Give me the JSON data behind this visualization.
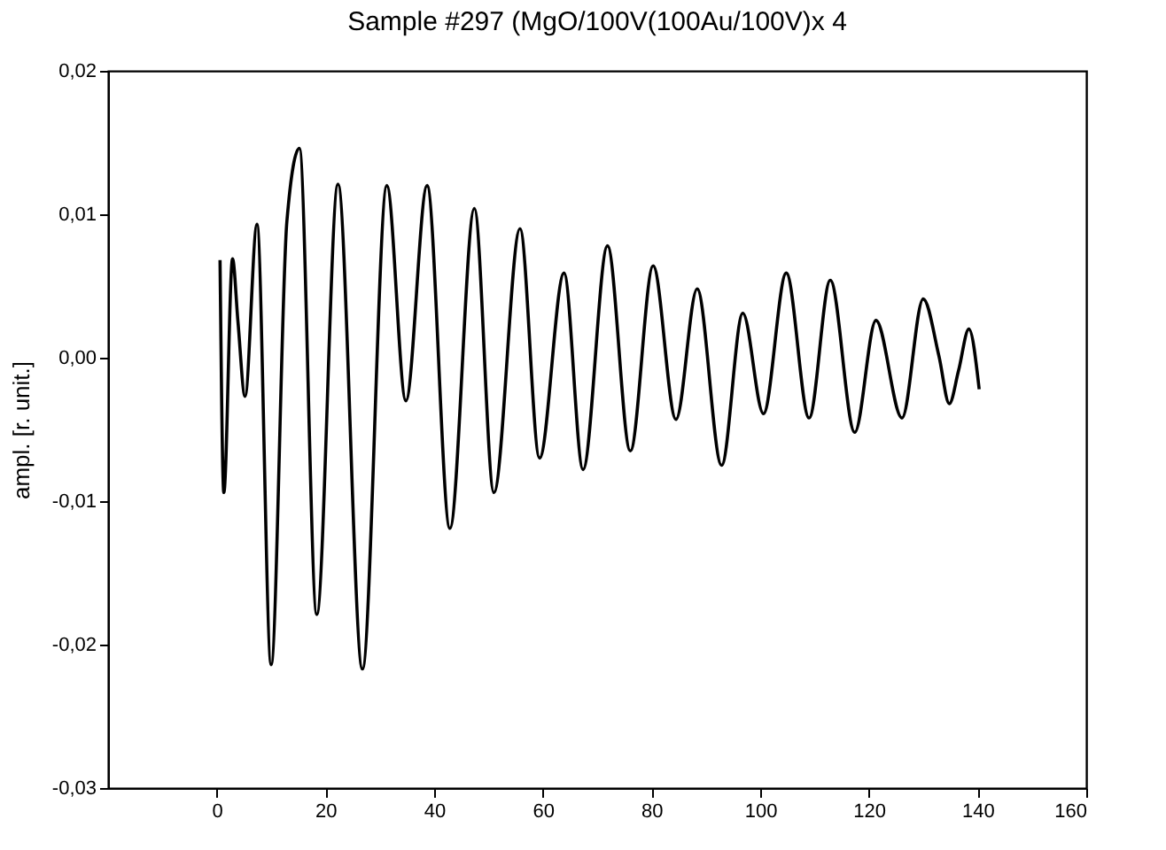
{
  "chart_data": {
    "type": "line",
    "title": "Sample #297 (MgO/100V(100Au/100V)x 4",
    "ylabel": "ampl. [r. unit.]",
    "xlim": [
      -20,
      160
    ],
    "xticks": [
      0,
      20,
      40,
      60,
      80,
      100,
      120,
      140,
      160
    ],
    "ylim": [
      -0.03,
      0.02
    ],
    "yticks": [
      {
        "value": -0.03,
        "label": "-0,03"
      },
      {
        "value": -0.02,
        "label": "-0,02"
      },
      {
        "value": -0.01,
        "label": "-0,01"
      },
      {
        "value": 0,
        "label": "0,00"
      },
      {
        "value": 0.01,
        "label": "0,01"
      },
      {
        "value": 0.02,
        "label": "0,02"
      }
    ],
    "grid": false,
    "legend": false,
    "marker": "none",
    "line_style": "solid",
    "series": [
      {
        "color": "#000000",
        "x": [
          0.6,
          1.3,
          2.9,
          3.9,
          5.2,
          7.4,
          10,
          12.9,
          15.2,
          18.4,
          22.3,
          26.8,
          31.3,
          34.8,
          38.7,
          42.9,
          47.4,
          51,
          55.8,
          59.4,
          63.9,
          67.4,
          71.9,
          76.1,
          80.3,
          84.5,
          88.4,
          92.9,
          96.8,
          100.6,
          104.8,
          109,
          112.9,
          117.4,
          121.3,
          126.1,
          130,
          132.9,
          134.8,
          136.5,
          138.4,
          140.3
        ],
        "values": [
          0.0068,
          -0.0094,
          0.0069,
          0.0025,
          -0.0027,
          0.0093,
          -0.0214,
          0.0095,
          0.0146,
          -0.0179,
          0.0121,
          -0.0217,
          0.012,
          -0.003,
          0.012,
          -0.0119,
          0.0104,
          -0.0094,
          0.009,
          -0.007,
          0.0059,
          -0.0078,
          0.0078,
          -0.0065,
          0.0064,
          -0.0043,
          0.0048,
          -0.0075,
          0.0031,
          -0.0039,
          0.0059,
          -0.0042,
          0.0054,
          -0.0052,
          0.0026,
          -0.0042,
          0.0041,
          0.0001,
          -0.0032,
          -0.0009,
          0.002,
          -0.0022
        ]
      }
    ]
  }
}
